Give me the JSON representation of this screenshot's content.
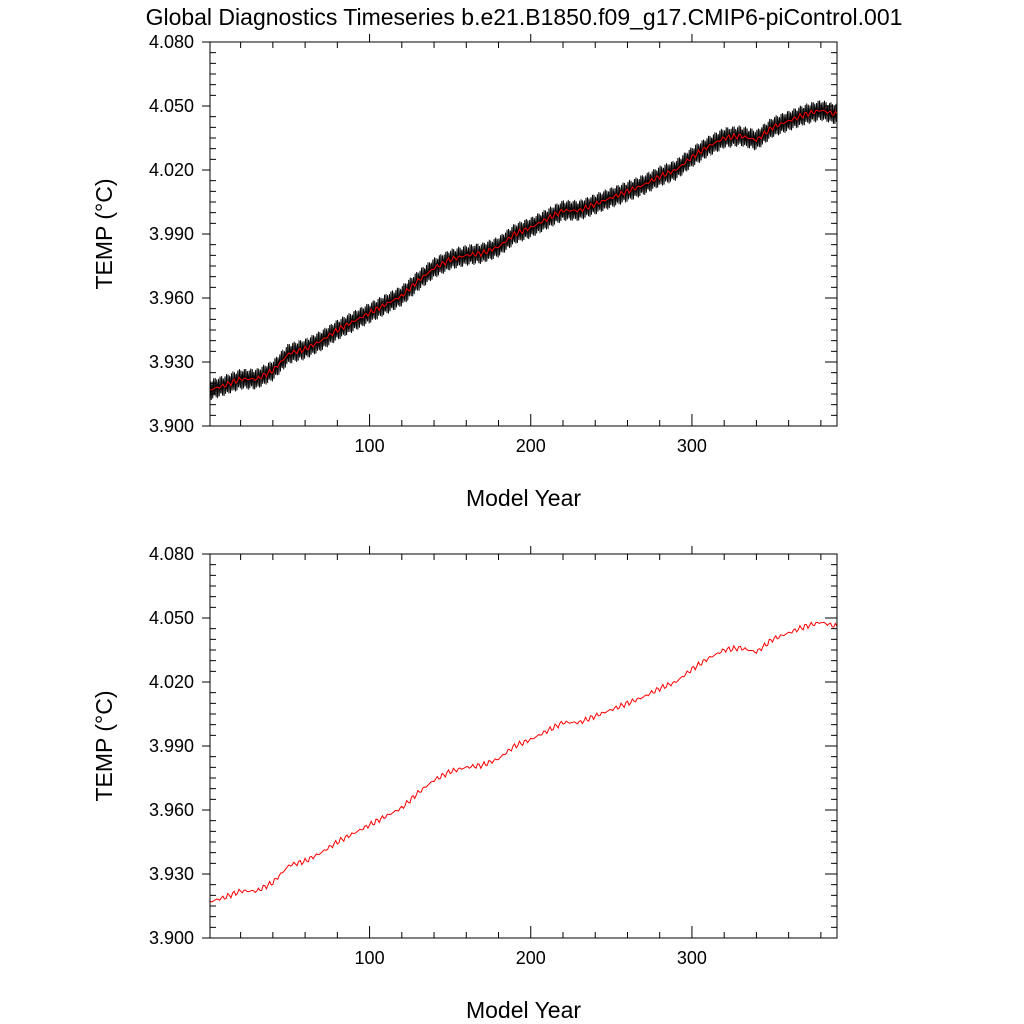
{
  "chart_data": [
    {
      "type": "line",
      "title": "Global Diagnostics Timeseries b.e21.B1850.f09_g17.CMIP6-piControl.001",
      "xlabel": "Model Year",
      "ylabel": "TEMP (°C)",
      "xlim": [
        1,
        390
      ],
      "ylim": [
        3.9,
        4.08
      ],
      "x_ticks": [
        100,
        200,
        300
      ],
      "x_tick_labels": [
        "100",
        "200",
        "300"
      ],
      "y_ticks": [
        3.9,
        3.93,
        3.96,
        3.99,
        4.02,
        4.05,
        4.08
      ],
      "y_tick_labels": [
        "3.900",
        "3.930",
        "3.960",
        "3.990",
        "4.020",
        "4.050",
        "4.080"
      ],
      "grid": false,
      "series": [
        {
          "name": "",
          "kind": "monthly",
          "color": "#000000",
          "seasonal_amplitude": 0.004,
          "x": [
            1,
            10,
            20,
            30,
            40,
            50,
            60,
            70,
            80,
            90,
            100,
            110,
            120,
            130,
            140,
            150,
            160,
            170,
            180,
            190,
            200,
            210,
            220,
            230,
            240,
            250,
            260,
            270,
            280,
            290,
            300,
            310,
            320,
            330,
            340,
            350,
            360,
            370,
            380,
            390
          ],
          "values": [
            3.917,
            3.919,
            3.922,
            3.922,
            3.926,
            3.934,
            3.936,
            3.94,
            3.945,
            3.949,
            3.953,
            3.957,
            3.961,
            3.968,
            3.974,
            3.978,
            3.98,
            3.981,
            3.984,
            3.99,
            3.993,
            3.997,
            4.001,
            4.001,
            4.004,
            4.007,
            4.01,
            4.013,
            4.017,
            4.02,
            4.026,
            4.031,
            4.035,
            4.036,
            4.034,
            4.04,
            4.043,
            4.046,
            4.048,
            4.046
          ]
        },
        {
          "name": "",
          "kind": "annual",
          "color": "#ff0000",
          "x": [
            1,
            10,
            20,
            30,
            40,
            50,
            60,
            70,
            80,
            90,
            100,
            110,
            120,
            130,
            140,
            150,
            160,
            170,
            180,
            190,
            200,
            210,
            220,
            230,
            240,
            250,
            260,
            270,
            280,
            290,
            300,
            310,
            320,
            330,
            340,
            350,
            360,
            370,
            380,
            390
          ],
          "values": [
            3.917,
            3.919,
            3.922,
            3.922,
            3.926,
            3.934,
            3.936,
            3.94,
            3.945,
            3.949,
            3.953,
            3.957,
            3.961,
            3.968,
            3.974,
            3.978,
            3.98,
            3.981,
            3.984,
            3.99,
            3.993,
            3.997,
            4.001,
            4.001,
            4.004,
            4.007,
            4.01,
            4.013,
            4.017,
            4.02,
            4.026,
            4.031,
            4.035,
            4.036,
            4.034,
            4.04,
            4.043,
            4.046,
            4.048,
            4.046
          ]
        }
      ]
    },
    {
      "type": "line",
      "title": "",
      "xlabel": "Model Year",
      "ylabel": "TEMP (°C)",
      "xlim": [
        1,
        390
      ],
      "ylim": [
        3.9,
        4.08
      ],
      "x_ticks": [
        100,
        200,
        300
      ],
      "x_tick_labels": [
        "100",
        "200",
        "300"
      ],
      "y_ticks": [
        3.9,
        3.93,
        3.96,
        3.99,
        4.02,
        4.05,
        4.08
      ],
      "y_tick_labels": [
        "3.900",
        "3.930",
        "3.960",
        "3.990",
        "4.020",
        "4.050",
        "4.080"
      ],
      "grid": false,
      "series": [
        {
          "name": "",
          "kind": "annual",
          "color": "#ff0000",
          "x": [
            1,
            10,
            20,
            30,
            40,
            50,
            60,
            70,
            80,
            90,
            100,
            110,
            120,
            130,
            140,
            150,
            160,
            170,
            180,
            190,
            200,
            210,
            220,
            230,
            240,
            250,
            260,
            270,
            280,
            290,
            300,
            310,
            320,
            330,
            340,
            350,
            360,
            370,
            380,
            390
          ],
          "values": [
            3.917,
            3.919,
            3.922,
            3.922,
            3.926,
            3.934,
            3.936,
            3.94,
            3.945,
            3.949,
            3.953,
            3.957,
            3.961,
            3.968,
            3.974,
            3.978,
            3.98,
            3.981,
            3.984,
            3.99,
            3.993,
            3.997,
            4.001,
            4.001,
            4.004,
            4.007,
            4.01,
            4.013,
            4.017,
            4.02,
            4.026,
            4.031,
            4.035,
            4.036,
            4.034,
            4.04,
            4.043,
            4.046,
            4.048,
            4.046
          ]
        }
      ]
    }
  ]
}
